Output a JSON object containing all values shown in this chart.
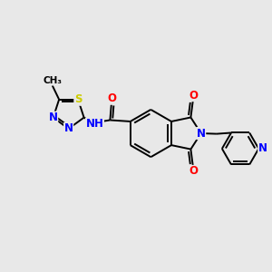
{
  "background_color": "#e8e8e8",
  "bond_color": "#000000",
  "bond_width": 1.4,
  "atom_colors": {
    "N": "#0000ff",
    "O": "#ff0000",
    "S": "#cccc00",
    "C": "#000000",
    "H": "#808080"
  },
  "font_size": 8.5
}
